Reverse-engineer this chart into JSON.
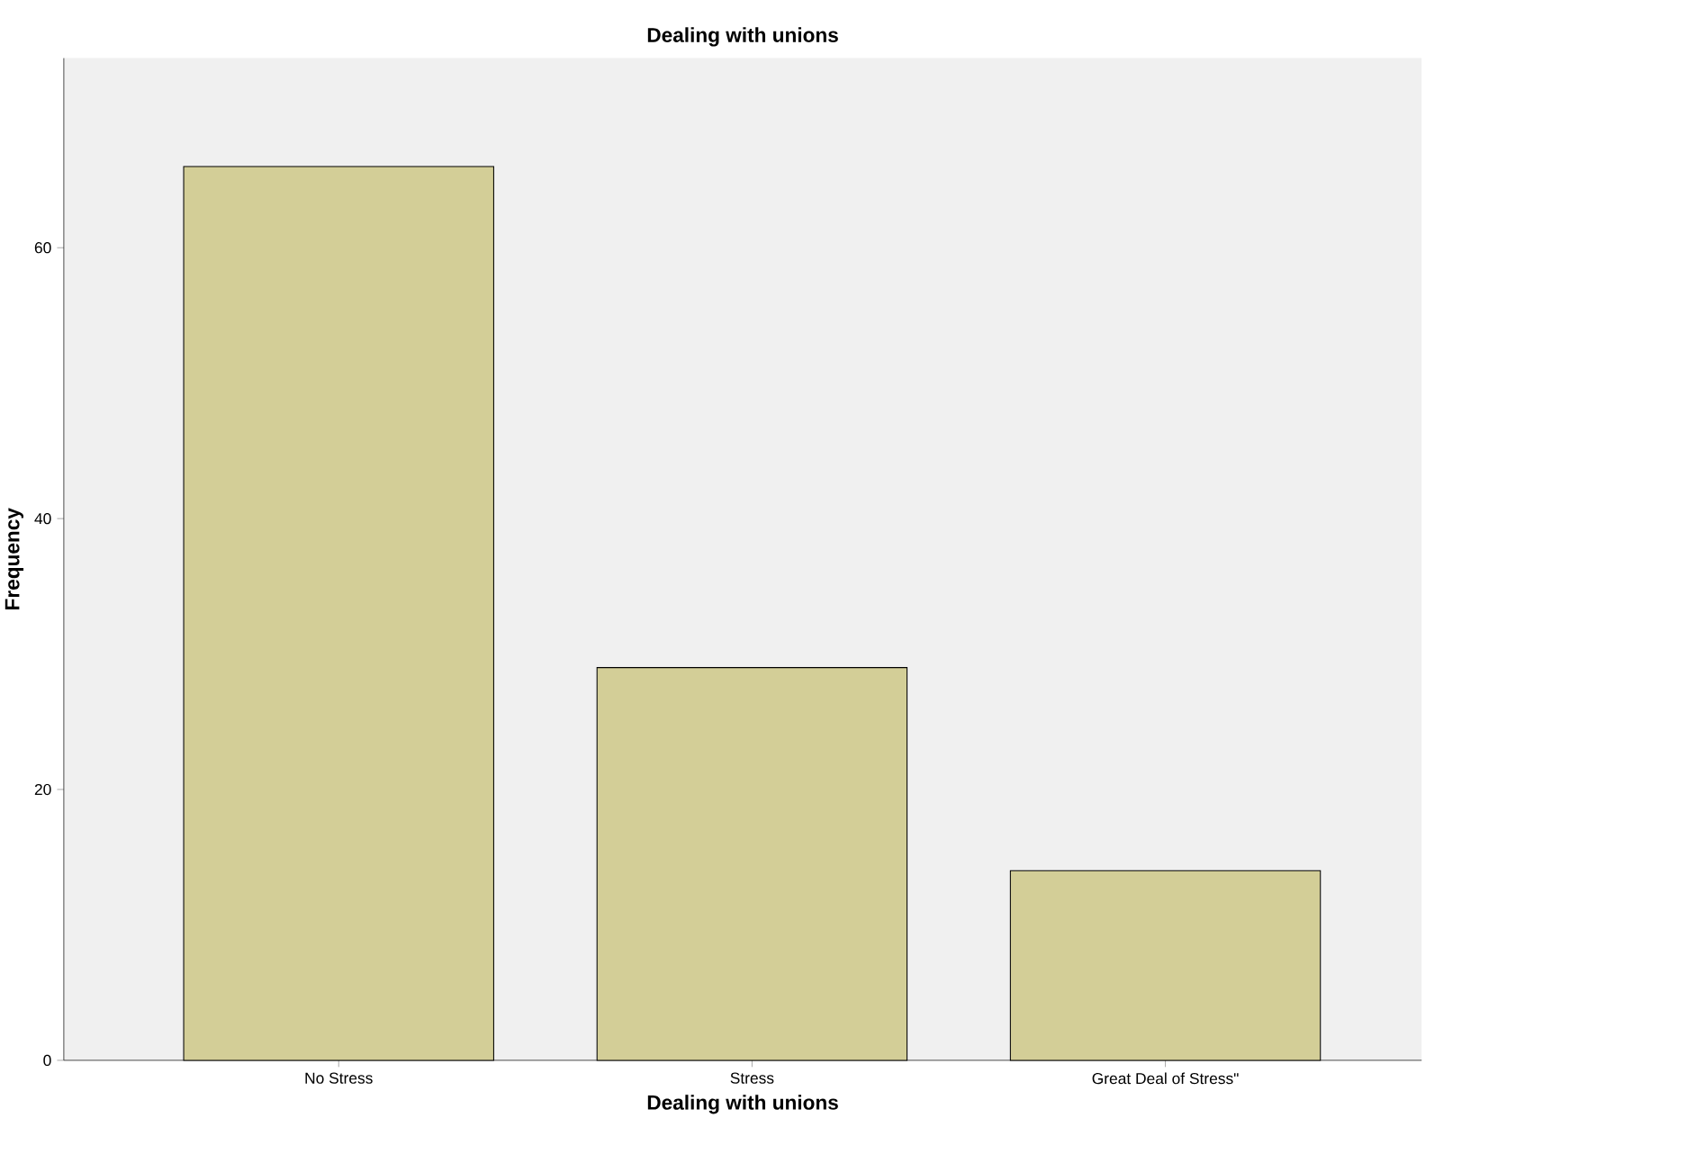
{
  "chart_data": {
    "type": "bar",
    "title": "Dealing with unions",
    "xlabel": "Dealing with unions",
    "ylabel": "Frequency",
    "categories": [
      "No Stress",
      "Stress",
      "Great Deal of Stress\""
    ],
    "values": [
      66,
      29,
      14
    ],
    "color": "#d3ce97",
    "ylim": [
      0,
      74
    ],
    "yticks": [
      0,
      20,
      40,
      60
    ],
    "grid": false
  }
}
